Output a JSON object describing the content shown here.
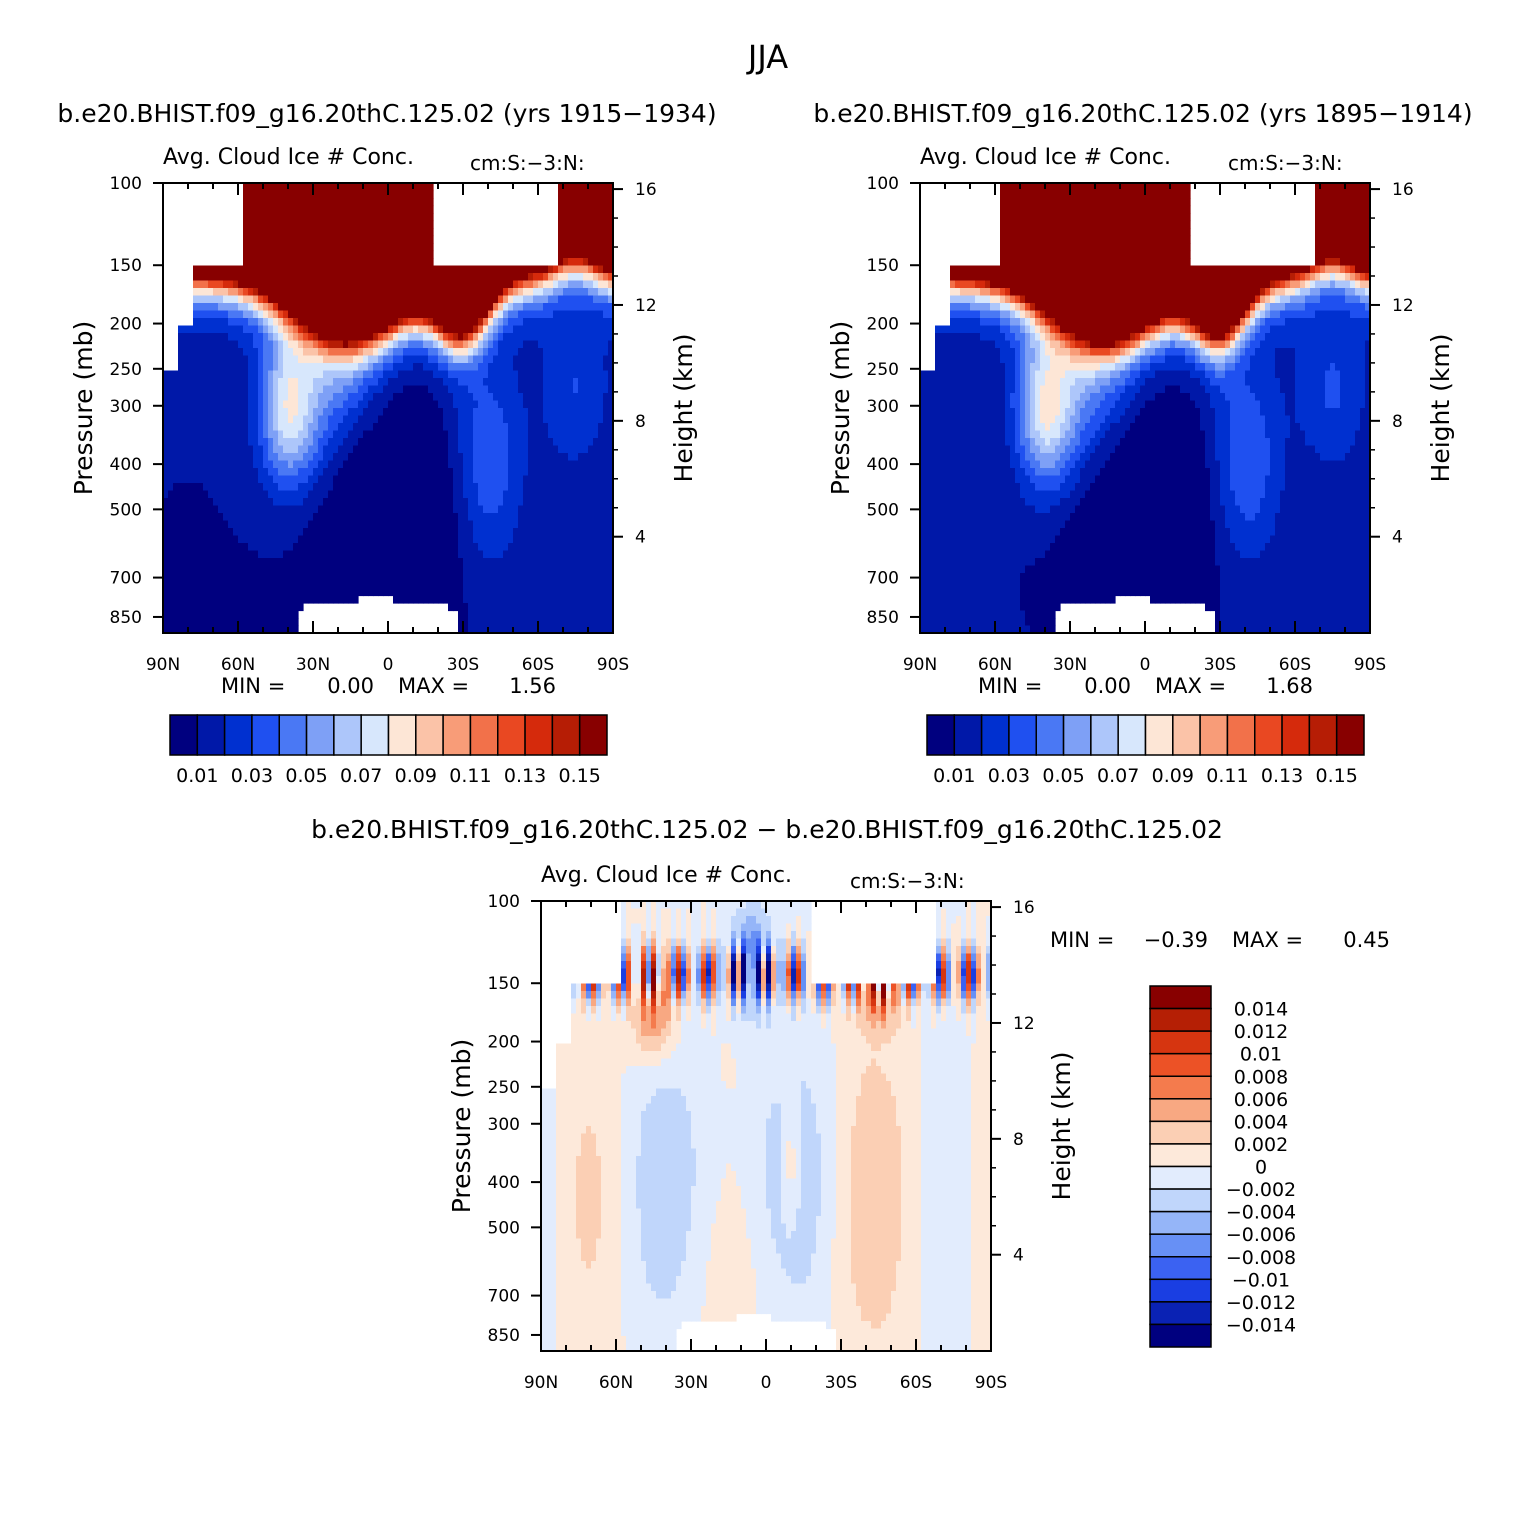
{
  "figure_title": "JJA",
  "colors": {
    "seq_palette": [
      "#00007f",
      "#0018a8",
      "#0030d0",
      "#1f50f0",
      "#4a78f4",
      "#7ea0f6",
      "#adc6fa",
      "#d7e7fc",
      "#fde6d6",
      "#fbc3a8",
      "#f89c78",
      "#f2714a",
      "#e94822",
      "#d52a0c",
      "#b61d05",
      "#880000"
    ],
    "diff_palette": [
      "#00007f",
      "#0a22b4",
      "#1a3ee2",
      "#3b62f2",
      "#6790f5",
      "#95b5f8",
      "#c0d6fb",
      "#e2ecfd",
      "#fde9da",
      "#fbcfb4",
      "#f8a882",
      "#f47b4d",
      "#ec5226",
      "#d63510",
      "#b51f05",
      "#880000"
    ],
    "missing": "#ffffff"
  },
  "chart_data": [
    {
      "id": "panel-1",
      "type": "heatmap",
      "case_title": "b.e20.BHIST.f09_g16.20thC.125.02 (yrs 1915-1934)",
      "title": "Avg. Cloud Ice # Conc.",
      "units": "cm:S:-3:N:",
      "xlabel": "",
      "ylabel": "Pressure (mb)",
      "y2label": "Height (km)",
      "x_range": [
        90,
        -90
      ],
      "x_ticks": [
        "90N",
        "60N",
        "30N",
        "0",
        "30S",
        "60S",
        "90S"
      ],
      "y_range_mb": [
        100,
        920
      ],
      "y_ticks": [
        "100",
        "150",
        "200",
        "250",
        "300",
        "400",
        "500",
        "700",
        "850"
      ],
      "y2_ticks": [
        "16",
        "12",
        "8",
        "4"
      ],
      "min_label": "MIN =",
      "min_value": "0.00",
      "max_label": "MAX =",
      "max_value": "1.56",
      "colorbar_labels": [
        "0.01",
        "0.03",
        "0.05",
        "0.07",
        "0.09",
        "0.11",
        "0.13",
        "0.15"
      ],
      "levels": [
        0.01,
        0.02,
        0.03,
        0.04,
        0.05,
        0.06,
        0.07,
        0.08,
        0.09,
        0.1,
        0.11,
        0.12,
        0.13,
        0.14,
        0.15
      ]
    },
    {
      "id": "panel-2",
      "type": "heatmap",
      "case_title": "b.e20.BHIST.f09_g16.20thC.125.02 (yrs 1895-1914)",
      "title": "Avg. Cloud Ice # Conc.",
      "units": "cm:S:-3:N:",
      "xlabel": "",
      "ylabel": "Pressure (mb)",
      "y2label": "Height (km)",
      "x_range": [
        90,
        -90
      ],
      "x_ticks": [
        "90N",
        "60N",
        "30N",
        "0",
        "30S",
        "60S",
        "90S"
      ],
      "y_range_mb": [
        100,
        920
      ],
      "y_ticks": [
        "100",
        "150",
        "200",
        "250",
        "300",
        "400",
        "500",
        "700",
        "850"
      ],
      "y2_ticks": [
        "16",
        "12",
        "8",
        "4"
      ],
      "min_label": "MIN =",
      "min_value": "0.00",
      "max_label": "MAX =",
      "max_value": "1.68",
      "colorbar_labels": [
        "0.01",
        "0.03",
        "0.05",
        "0.07",
        "0.09",
        "0.11",
        "0.13",
        "0.15"
      ],
      "levels": [
        0.01,
        0.02,
        0.03,
        0.04,
        0.05,
        0.06,
        0.07,
        0.08,
        0.09,
        0.1,
        0.11,
        0.12,
        0.13,
        0.14,
        0.15
      ]
    },
    {
      "id": "panel-3",
      "type": "heatmap",
      "case_title": "b.e20.BHIST.f09_g16.20thC.125.02 - b.e20.BHIST.f09_g16.20thC.125.02",
      "title": "Avg. Cloud Ice # Conc.",
      "units": "cm:S:-3:N:",
      "xlabel": "",
      "ylabel": "Pressure (mb)",
      "y2label": "Height (km)",
      "x_range": [
        90,
        -90
      ],
      "x_ticks": [
        "90N",
        "60N",
        "30N",
        "0",
        "30S",
        "60S",
        "90S"
      ],
      "y_range_mb": [
        100,
        920
      ],
      "y_ticks": [
        "100",
        "150",
        "200",
        "250",
        "300",
        "400",
        "500",
        "700",
        "850"
      ],
      "y2_ticks": [
        "16",
        "12",
        "8",
        "4"
      ],
      "min_label": "MIN =",
      "min_value": "-0.39",
      "max_label": "MAX =",
      "max_value": "0.45",
      "colorbar_labels": [
        "0.014",
        "0.012",
        "0.01",
        "0.008",
        "0.006",
        "0.004",
        "0.002",
        "0",
        "-0.002",
        "-0.004",
        "-0.006",
        "-0.008",
        "-0.01",
        "-0.012",
        "-0.014"
      ],
      "levels": [
        -0.014,
        -0.012,
        -0.01,
        -0.008,
        -0.006,
        -0.004,
        -0.002,
        0,
        0.002,
        0.004,
        0.006,
        0.008,
        0.01,
        0.012,
        0.014
      ]
    }
  ]
}
